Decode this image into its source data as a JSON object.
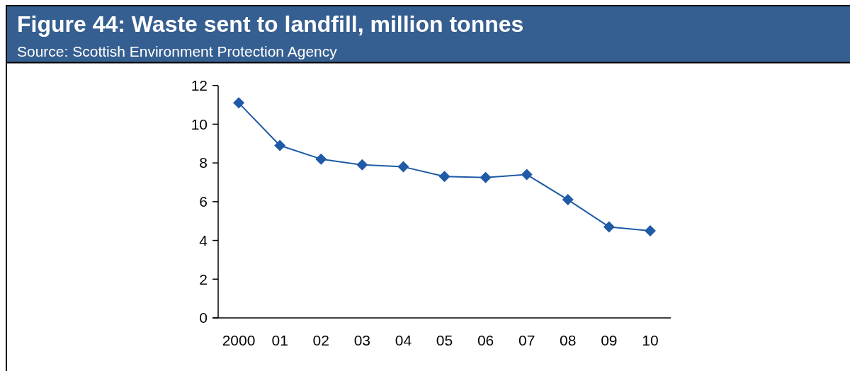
{
  "chart_data": {
    "type": "line",
    "title": "Figure 44: Waste sent to landfill, million tonnes",
    "annotations": [
      "Source: Scottish Environment Protection Agency"
    ],
    "categories": [
      "2000",
      "01",
      "02",
      "03",
      "04",
      "05",
      "06",
      "07",
      "08",
      "09",
      "10"
    ],
    "series": [
      {
        "color": "#1f5aa6",
        "values": [
          11.1,
          8.9,
          8.2,
          7.9,
          7.8,
          7.3,
          7.25,
          7.4,
          6.1,
          4.7,
          4.5
        ]
      }
    ],
    "ylim": [
      0,
      12
    ],
    "yticks": [
      0,
      2,
      4,
      6,
      8,
      10,
      12
    ],
    "marker": "diamond",
    "line_style": "solid"
  }
}
